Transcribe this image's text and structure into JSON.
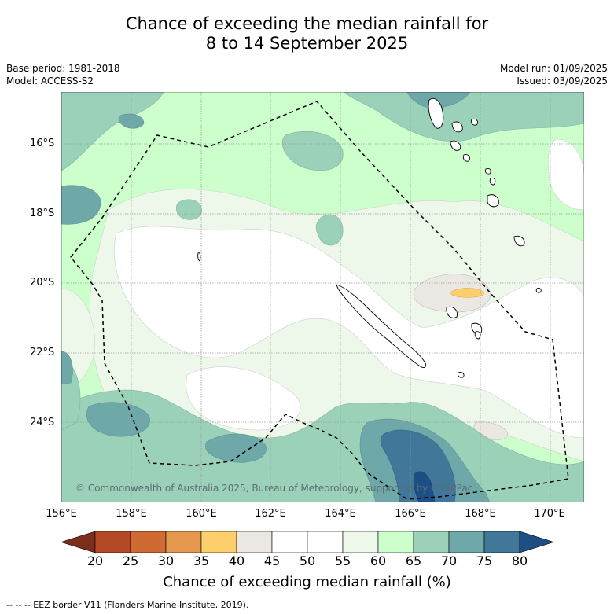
{
  "title_line1": "Chance of exceeding the median rainfall for",
  "title_line2": "8 to 14 September 2025",
  "base_period": "Base period: 1981-2018",
  "model": "Model: ACCESS-S2",
  "model_run": "Model run: 01/09/2025",
  "issued": "Issued: 03/09/2025",
  "copyright": "© Commonwealth of Australia 2025, Bureau of Meteorology, supported by COSPPac",
  "lat_labels": [
    "16°S",
    "18°S",
    "20°S",
    "22°S",
    "24°S"
  ],
  "lon_labels": [
    "156°E",
    "158°E",
    "160°E",
    "162°E",
    "164°E",
    "166°E",
    "168°E",
    "170°E"
  ],
  "colorbar": {
    "ticks": [
      "20",
      "25",
      "30",
      "35",
      "40",
      "45",
      "50",
      "55",
      "60",
      "65",
      "70",
      "75",
      "80"
    ],
    "colors": [
      "#7d2e1a",
      "#b34a25",
      "#d06a34",
      "#e5984d",
      "#fdce6c",
      "#ebe8e4",
      "#ffffff",
      "#ffffff",
      "#edf8ea",
      "#ccffcc",
      "#9bd1b9",
      "#6ea8a8",
      "#41789a",
      "#1d4f86"
    ],
    "label": "Chance of exceeding median rainfall (%)"
  },
  "footer": "--  --  -- EEZ border V11 (Flanders Marine Institute, 2019).",
  "colors": {
    "land_outline": "#000000",
    "eez_border": "#000000",
    "gridline": "#9a9a9a"
  }
}
